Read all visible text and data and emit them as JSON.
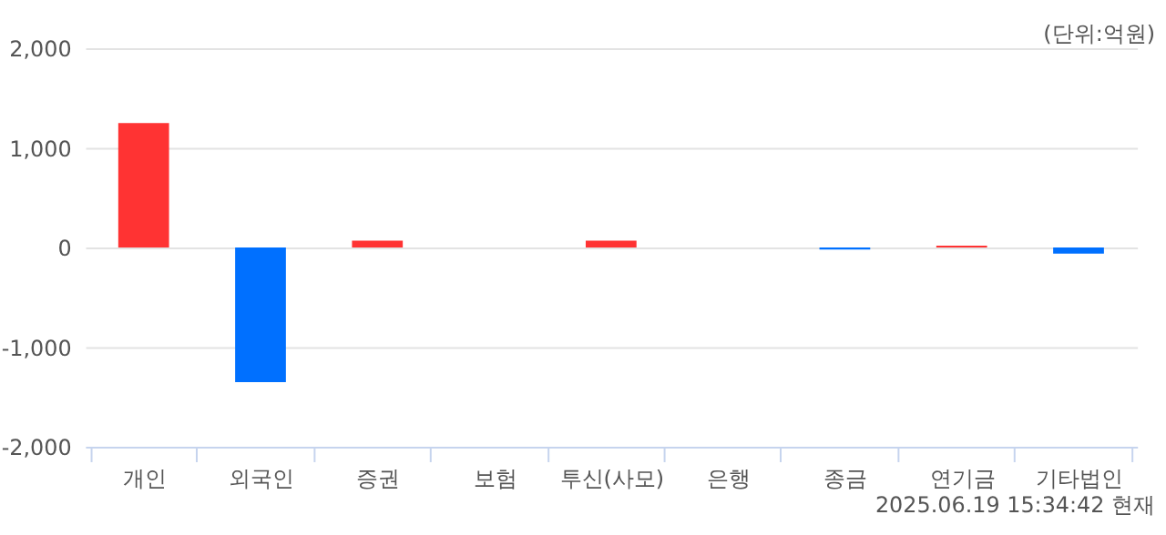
{
  "chart_data": {
    "type": "bar",
    "categories": [
      "개인",
      "외국인",
      "증권",
      "보험",
      "투신(사모)",
      "은행",
      "종금",
      "연기금",
      "기타법인"
    ],
    "values": [
      1250,
      -1350,
      70,
      0,
      70,
      0,
      -20,
      20,
      -60
    ],
    "colors": [
      "#ff3333",
      "#0070ff",
      "#ff3333",
      "#ff3333",
      "#ff3333",
      "#ff3333",
      "#0070ff",
      "#ff3333",
      "#0070ff"
    ],
    "ylim": [
      -2000,
      2000
    ],
    "yticks": [
      {
        "value": -2000,
        "label": "-2,000"
      },
      {
        "value": -1000,
        "label": "-1,000"
      },
      0,
      {
        "value": 1000,
        "label": "1,000"
      },
      {
        "value": 2000,
        "label": "2,000"
      }
    ],
    "grid": "y",
    "annotations": [
      "(단위:억원)",
      "2025.06.19 15:34:42 현재"
    ]
  }
}
